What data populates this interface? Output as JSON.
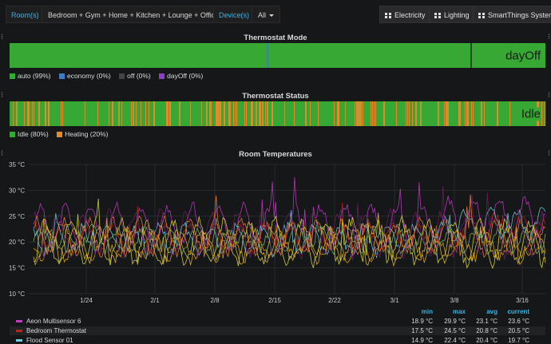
{
  "topbar": {
    "room_label": "Room(s)",
    "room_value": "Bedroom + Gym + Home + Kitchen + Lounge + Office",
    "device_label": "Device(s)",
    "device_value": "All",
    "buttons": [
      "Electricity",
      "Lighting",
      "SmartThings System"
    ]
  },
  "thermostat_mode": {
    "title": "Thermostat Mode",
    "current": "dayOff",
    "legend": [
      {
        "label": "auto (99%)",
        "color": "#37a834"
      },
      {
        "label": "economy (0%)",
        "color": "#3a7dc0"
      },
      {
        "label": "off (0%)",
        "color": "#444444"
      },
      {
        "label": "dayOff (0%)",
        "color": "#8e3cc0"
      }
    ]
  },
  "thermostat_status": {
    "title": "Thermostat Status",
    "current": "Idle",
    "legend": [
      {
        "label": "Idle (80%)",
        "color": "#37a834"
      },
      {
        "label": "Heating (20%)",
        "color": "#e58a2a"
      }
    ]
  },
  "room_temps": {
    "title": "Room Temperatures",
    "table_headers": [
      "min",
      "max",
      "avg",
      "current"
    ],
    "rows": [
      {
        "name": "Aeon Multisensor 6",
        "color": "#c239c6",
        "min": "18.9 °C",
        "max": "29.9 °C",
        "avg": "23.1 °C",
        "current": "23.6 °C"
      },
      {
        "name": "Bedroom Thermostat",
        "color": "#b4271a",
        "min": "17.5 °C",
        "max": "24.5 °C",
        "avg": "20.8 °C",
        "current": "20.5 °C"
      },
      {
        "name": "Flood Sensor 01",
        "color": "#6ed0e0",
        "min": "14.9 °C",
        "max": "22.4 °C",
        "avg": "20.4 °C",
        "current": "19.7 °C"
      }
    ]
  },
  "chart_data": {
    "type": "line",
    "title": "Room Temperatures",
    "y_ticks": [
      "35 °C",
      "30 °C",
      "25 °C",
      "20 °C",
      "15 °C",
      "10 °C"
    ],
    "ylim": [
      10,
      35
    ],
    "x_ticks": [
      "1/24",
      "2/1",
      "2/8",
      "2/15",
      "2/22",
      "3/1",
      "3/8",
      "3/16"
    ],
    "grid": true,
    "series": [
      {
        "name": "Aeon Multisensor 6",
        "color": "#c239c6",
        "min": 18.9,
        "max": 29.9,
        "avg": 23.1,
        "current": 23.6
      },
      {
        "name": "Bedroom Thermostat",
        "color": "#b4271a",
        "min": 17.5,
        "max": 24.5,
        "avg": 20.8,
        "current": 20.5
      },
      {
        "name": "Flood Sensor 01",
        "color": "#6ed0e0",
        "min": 14.9,
        "max": 22.4,
        "avg": 20.4,
        "current": 19.7
      }
    ]
  }
}
